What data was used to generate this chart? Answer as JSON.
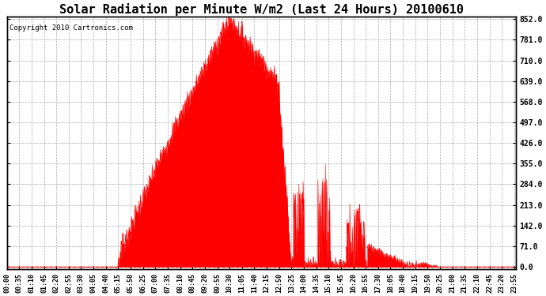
{
  "title": "Solar Radiation per Minute W/m2 (Last 24 Hours) 20100610",
  "copyright_text": "Copyright 2010 Cartronics.com",
  "fill_color": "#FF0000",
  "line_color": "#FF0000",
  "background_color": "#FFFFFF",
  "grid_color": "#AAAAAA",
  "dashed_line_color": "#FF0000",
  "yticks": [
    0.0,
    71.0,
    142.0,
    213.0,
    284.0,
    355.0,
    426.0,
    497.0,
    568.0,
    639.0,
    710.0,
    781.0,
    852.0
  ],
  "ymax": 852.0,
  "ymin": 0.0,
  "title_fontsize": 11,
  "copyright_fontsize": 6.5,
  "tick_fontsize": 6,
  "ytick_fontsize": 7
}
